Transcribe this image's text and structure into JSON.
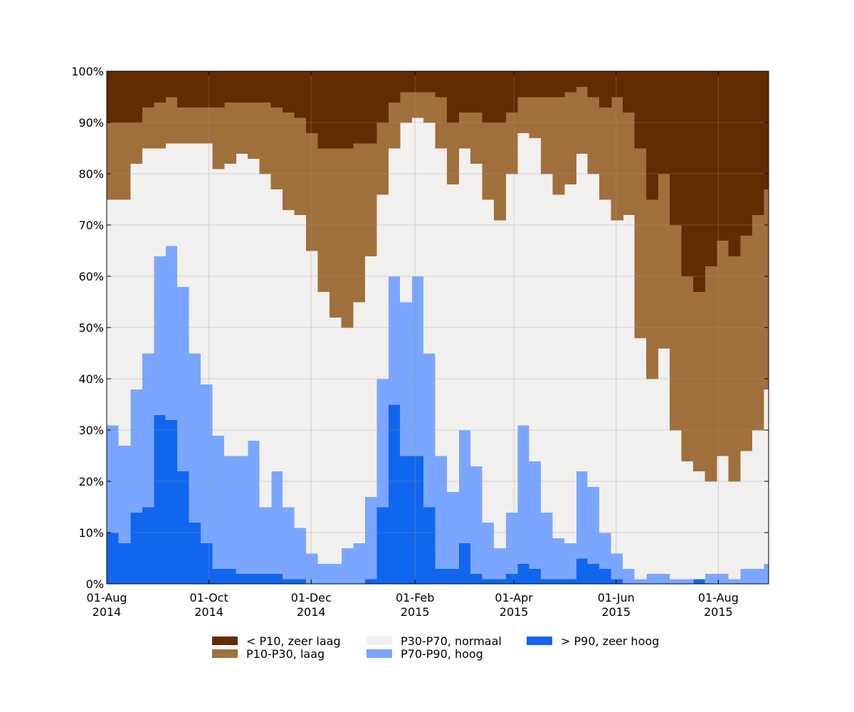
{
  "chart_data": {
    "type": "stacked-area",
    "x": [
      "2014-08-01",
      "2014-08-08",
      "2014-08-15",
      "2014-08-22",
      "2014-08-29",
      "2014-09-05",
      "2014-09-12",
      "2014-09-19",
      "2014-09-26",
      "2014-10-03",
      "2014-10-10",
      "2014-10-17",
      "2014-10-24",
      "2014-10-31",
      "2014-11-07",
      "2014-11-14",
      "2014-11-21",
      "2014-11-28",
      "2014-12-05",
      "2014-12-12",
      "2014-12-19",
      "2014-12-26",
      "2015-01-02",
      "2015-01-09",
      "2015-01-16",
      "2015-01-23",
      "2015-01-30",
      "2015-02-06",
      "2015-02-13",
      "2015-02-20",
      "2015-02-27",
      "2015-03-06",
      "2015-03-13",
      "2015-03-20",
      "2015-03-27",
      "2015-04-03",
      "2015-04-10",
      "2015-04-17",
      "2015-04-24",
      "2015-05-01",
      "2015-05-08",
      "2015-05-15",
      "2015-05-22",
      "2015-05-29",
      "2015-06-05",
      "2015-06-12",
      "2015-06-19",
      "2015-06-26",
      "2015-07-03",
      "2015-07-10",
      "2015-07-17",
      "2015-07-24",
      "2015-07-31",
      "2015-08-07",
      "2015-08-14",
      "2015-08-21",
      "2015-08-28"
    ],
    "series": [
      {
        "name": "> P90, zeer hoog",
        "color": "#1166ee",
        "values": [
          10,
          8,
          14,
          15,
          33,
          32,
          22,
          12,
          8,
          3,
          3,
          2,
          2,
          2,
          2,
          1,
          1,
          0,
          0,
          0,
          0,
          0,
          1,
          15,
          35,
          25,
          25,
          15,
          3,
          3,
          8,
          2,
          1,
          1,
          2,
          4,
          3,
          1,
          1,
          1,
          5,
          4,
          3,
          1,
          0,
          0,
          0,
          0,
          0,
          0,
          1,
          0,
          0,
          0,
          0,
          0,
          0
        ]
      },
      {
        "name": "P70-P90, hoog",
        "color": "#7aa6ff",
        "values": [
          21,
          19,
          24,
          30,
          31,
          34,
          36,
          33,
          31,
          26,
          22,
          23,
          26,
          13,
          20,
          14,
          10,
          6,
          4,
          4,
          7,
          8,
          16,
          25,
          25,
          30,
          35,
          30,
          22,
          15,
          22,
          21,
          11,
          6,
          12,
          27,
          21,
          13,
          8,
          7,
          17,
          15,
          7,
          5,
          3,
          1,
          2,
          2,
          1,
          1,
          0,
          2,
          2,
          1,
          3,
          3,
          4
        ]
      },
      {
        "name": "P30-P70, normaal",
        "color": "#f2f0ef",
        "values": [
          44,
          48,
          44,
          40,
          21,
          20,
          28,
          41,
          47,
          52,
          57,
          59,
          55,
          65,
          55,
          58,
          61,
          59,
          53,
          48,
          43,
          47,
          47,
          36,
          25,
          35,
          31,
          45,
          60,
          60,
          55,
          59,
          63,
          64,
          66,
          57,
          63,
          66,
          67,
          70,
          62,
          61,
          65,
          65,
          69,
          47,
          38,
          44,
          29,
          23,
          21,
          18,
          23,
          19,
          23,
          27,
          34
        ]
      },
      {
        "name": "P10-P30, laag",
        "color": "#a0703c",
        "values": [
          15,
          15,
          8,
          8,
          9,
          9,
          7,
          7,
          7,
          12,
          12,
          10,
          11,
          14,
          16,
          19,
          19,
          23,
          28,
          33,
          35,
          31,
          22,
          14,
          9,
          6,
          5,
          6,
          10,
          12,
          7,
          10,
          15,
          19,
          12,
          7,
          8,
          15,
          19,
          18,
          13,
          15,
          18,
          24,
          20,
          37,
          35,
          34,
          40,
          36,
          35,
          42,
          42,
          44,
          42,
          42,
          39
        ]
      },
      {
        "name": "< P10, zeer laag",
        "color": "#612c00",
        "values": [
          10,
          10,
          10,
          7,
          6,
          5,
          7,
          7,
          7,
          7,
          6,
          6,
          6,
          6,
          7,
          8,
          9,
          12,
          15,
          15,
          15,
          14,
          14,
          10,
          6,
          4,
          4,
          4,
          5,
          10,
          8,
          8,
          10,
          10,
          8,
          5,
          5,
          5,
          5,
          4,
          3,
          5,
          7,
          5,
          8,
          15,
          25,
          20,
          30,
          40,
          43,
          38,
          33,
          36,
          32,
          28,
          23
        ]
      }
    ],
    "xlim": [
      "2014-08-01",
      "2015-08-31"
    ],
    "xticks": [
      {
        "value": "2014-08-01",
        "label": "01-Aug\n2014"
      },
      {
        "value": "2014-10-01",
        "label": "01-Oct\n2014"
      },
      {
        "value": "2014-12-01",
        "label": "01-Dec\n2014"
      },
      {
        "value": "2015-02-01",
        "label": "01-Feb\n2015"
      },
      {
        "value": "2015-04-01",
        "label": "01-Apr\n2015"
      },
      {
        "value": "2015-06-01",
        "label": "01-Jun\n2015"
      },
      {
        "value": "2015-08-01",
        "label": "01-Aug\n2015"
      }
    ],
    "ylim": [
      0,
      100
    ],
    "yticks": [
      {
        "value": 0,
        "label": "0%"
      },
      {
        "value": 10,
        "label": "10%"
      },
      {
        "value": 20,
        "label": "20%"
      },
      {
        "value": 30,
        "label": "30%"
      },
      {
        "value": 40,
        "label": "40%"
      },
      {
        "value": 50,
        "label": "50%"
      },
      {
        "value": 60,
        "label": "60%"
      },
      {
        "value": 70,
        "label": "70%"
      },
      {
        "value": 80,
        "label": "80%"
      },
      {
        "value": 90,
        "label": "90%"
      },
      {
        "value": 100,
        "label": "100%"
      }
    ],
    "grid": true,
    "legend": "bottom"
  }
}
